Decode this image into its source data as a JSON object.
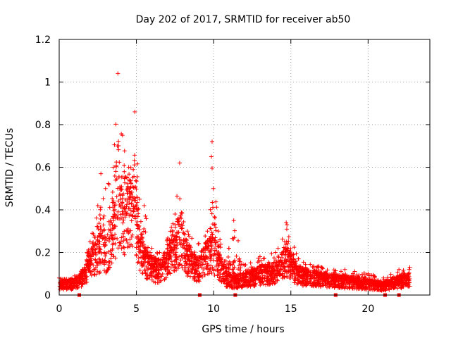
{
  "chart_data": {
    "type": "scatter",
    "title": "Day 202 of 2017, SRMTID for receiver ab50",
    "xlabel": "GPS time / hours",
    "ylabel": "SRMTID / TECUs",
    "xlim": [
      0,
      24
    ],
    "ylim": [
      0,
      1.2
    ],
    "x_ticks": [
      0,
      5,
      10,
      15,
      20
    ],
    "x_tick_labels": [
      "0",
      "5",
      "10",
      "15",
      "20"
    ],
    "y_ticks": [
      0,
      0.2,
      0.4,
      0.6,
      0.8,
      1.0,
      1.2
    ],
    "y_tick_labels": [
      "0",
      "0.2",
      "0.4",
      "0.6",
      "0.8",
      "1",
      "1.2"
    ],
    "grid": true,
    "marker": "+",
    "marker_color": "#ff0000",
    "series": [
      {
        "name": "SRMTID",
        "seed": 20170721,
        "approx_points": 3200,
        "x_range": [
          0.0,
          22.7
        ],
        "profile": [
          {
            "x": 0.0,
            "median": 0.05,
            "max": 0.08
          },
          {
            "x": 1.0,
            "median": 0.05,
            "max": 0.09
          },
          {
            "x": 1.5,
            "median": 0.08,
            "max": 0.12
          },
          {
            "x": 2.0,
            "median": 0.14,
            "max": 0.25
          },
          {
            "x": 2.5,
            "median": 0.18,
            "max": 0.42
          },
          {
            "x": 2.7,
            "median": 0.22,
            "max": 0.57
          },
          {
            "x": 3.0,
            "median": 0.2,
            "max": 0.5
          },
          {
            "x": 3.5,
            "median": 0.28,
            "max": 0.6
          },
          {
            "x": 3.8,
            "median": 0.4,
            "max": 1.04
          },
          {
            "x": 4.1,
            "median": 0.36,
            "max": 0.75
          },
          {
            "x": 4.5,
            "median": 0.38,
            "max": 0.6
          },
          {
            "x": 4.9,
            "median": 0.4,
            "max": 0.86
          },
          {
            "x": 5.2,
            "median": 0.22,
            "max": 0.45
          },
          {
            "x": 5.5,
            "median": 0.16,
            "max": 0.42
          },
          {
            "x": 6.0,
            "median": 0.12,
            "max": 0.22
          },
          {
            "x": 6.5,
            "median": 0.11,
            "max": 0.2
          },
          {
            "x": 7.0,
            "median": 0.16,
            "max": 0.26
          },
          {
            "x": 7.5,
            "median": 0.22,
            "max": 0.38
          },
          {
            "x": 7.8,
            "median": 0.26,
            "max": 0.62
          },
          {
            "x": 8.3,
            "median": 0.16,
            "max": 0.3
          },
          {
            "x": 9.0,
            "median": 0.12,
            "max": 0.24
          },
          {
            "x": 9.6,
            "median": 0.18,
            "max": 0.3
          },
          {
            "x": 9.9,
            "median": 0.2,
            "max": 0.72
          },
          {
            "x": 10.3,
            "median": 0.14,
            "max": 0.3
          },
          {
            "x": 10.8,
            "median": 0.08,
            "max": 0.16
          },
          {
            "x": 11.3,
            "median": 0.06,
            "max": 0.35
          },
          {
            "x": 12.0,
            "median": 0.07,
            "max": 0.14
          },
          {
            "x": 13.0,
            "median": 0.09,
            "max": 0.18
          },
          {
            "x": 14.0,
            "median": 0.1,
            "max": 0.2
          },
          {
            "x": 14.7,
            "median": 0.16,
            "max": 0.34
          },
          {
            "x": 15.5,
            "median": 0.09,
            "max": 0.17
          },
          {
            "x": 17.0,
            "median": 0.07,
            "max": 0.13
          },
          {
            "x": 18.5,
            "median": 0.06,
            "max": 0.12
          },
          {
            "x": 20.0,
            "median": 0.05,
            "max": 0.1
          },
          {
            "x": 21.0,
            "median": 0.04,
            "max": 0.08
          },
          {
            "x": 22.0,
            "median": 0.06,
            "max": 0.12
          },
          {
            "x": 22.7,
            "median": 0.07,
            "max": 0.13
          }
        ]
      }
    ],
    "bottom_markers": {
      "marker": "square",
      "x": [
        1.3,
        9.1,
        11.4,
        17.9,
        21.1,
        22.0
      ],
      "y": 0
    }
  }
}
